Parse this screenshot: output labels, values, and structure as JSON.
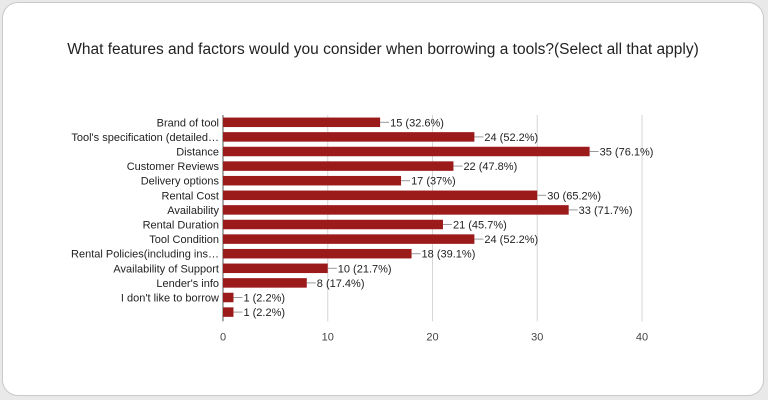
{
  "title": "What features and factors would you consider when borrowing a tools?(Select all that apply)",
  "chart_data": {
    "type": "bar",
    "orientation": "horizontal",
    "title": "What features and factors would you consider when borrowing a tools?(Select all that apply)",
    "categories": [
      "Brand of tool",
      "Tool's specification (detailed…",
      "Distance",
      "Customer Reviews",
      "Delivery options",
      "Rental Cost",
      "Availability",
      "Rental Duration",
      "Tool Condition",
      "Rental Policies(including ins…",
      "Availability of Support",
      "Lender's info",
      "I don't like to borrow",
      ""
    ],
    "values": [
      15,
      24,
      35,
      22,
      17,
      30,
      33,
      21,
      24,
      18,
      10,
      8,
      1,
      1
    ],
    "data_labels": [
      "15 (32.6%)",
      "24 (52.2%)",
      "35 (76.1%)",
      "22 (47.8%)",
      "17 (37%)",
      "30 (65.2%)",
      "33 (71.7%)",
      "21 (45.7%)",
      "24 (52.2%)",
      "18 (39.1%)",
      "10 (21.7%)",
      "8 (17.4%)",
      "1 (2.2%)",
      "1 (2.2%)"
    ],
    "xlim": [
      0,
      40
    ],
    "xticks": [
      "0",
      "10",
      "20",
      "30",
      "40"
    ],
    "grid": true,
    "bar_color": "#9b1b1b"
  }
}
